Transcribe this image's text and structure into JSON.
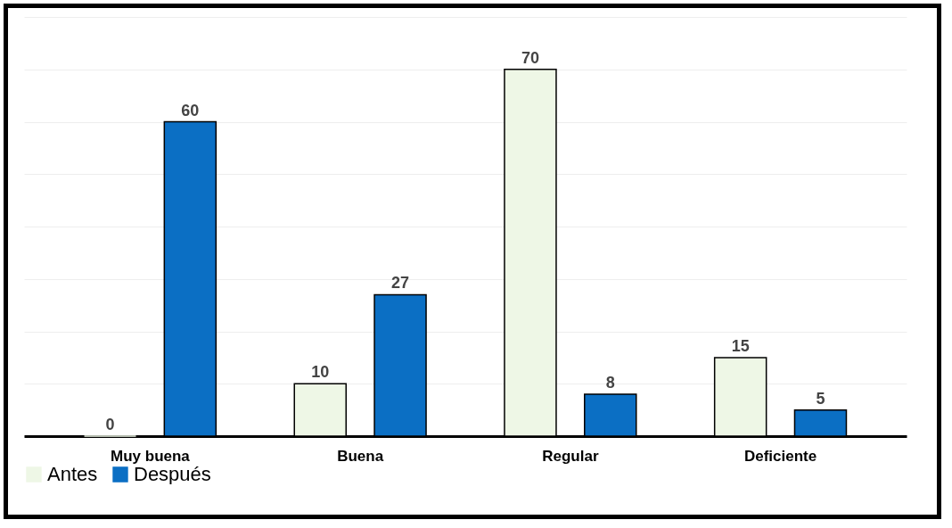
{
  "chart_data": {
    "type": "bar",
    "categories": [
      "Muy buena",
      "Buena",
      "Regular",
      "Deficiente"
    ],
    "series": [
      {
        "name": "Antes",
        "color": "#eef7e6",
        "values": [
          0,
          10,
          70,
          15
        ]
      },
      {
        "name": "Después",
        "color": "#0b6fc4",
        "values": [
          60,
          27,
          8,
          5
        ]
      }
    ],
    "ylim": [
      0,
      80
    ],
    "yticks": [
      {
        "value": 0,
        "label": null
      },
      {
        "value": 10,
        "label": null
      },
      {
        "value": 20,
        "label": null
      },
      {
        "value": 30,
        "label": null
      },
      {
        "value": 40,
        "label": null
      },
      {
        "value": 50,
        "label": null
      },
      {
        "value": 60,
        "label": null
      },
      {
        "value": 70,
        "label": null
      },
      {
        "value": 80,
        "label": null
      }
    ],
    "grid": "y",
    "data_labels": true,
    "legend": "bottom",
    "tick_labels": "x"
  }
}
